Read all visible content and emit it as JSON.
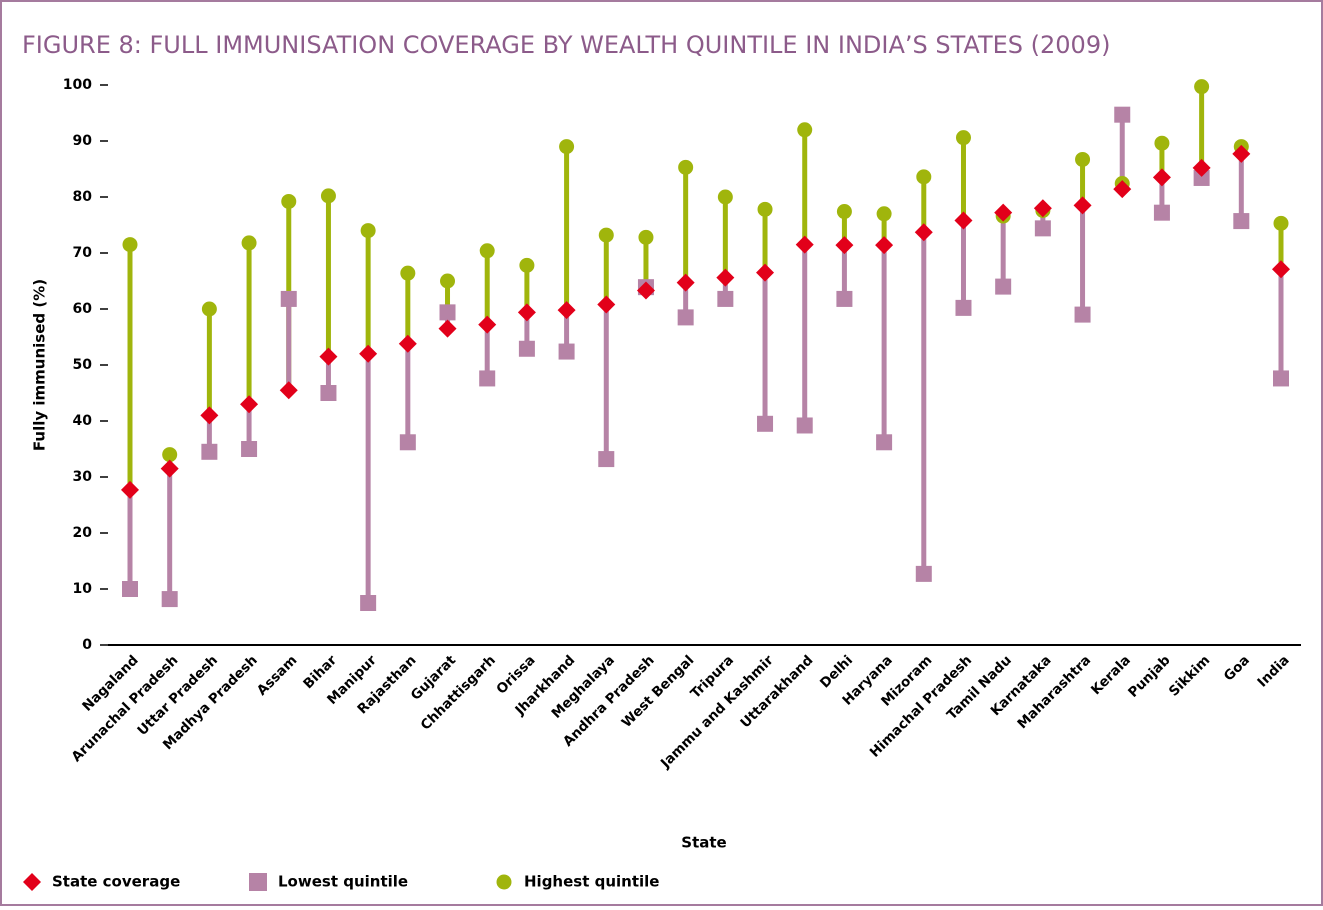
{
  "chart_data": {
    "type": "dot-range",
    "title": "FIGURE 8: FULL IMMUNISATION COVERAGE BY WEALTH QUINTILE IN INDIA’S STATES (2009)",
    "x_label": "State",
    "y_label": "Fully immunised (%)",
    "categories": [
      "Nagaland",
      "Arunachal Pradesh",
      "Uttar Pradesh",
      "Madhya Pradesh",
      "Assam",
      "Bihar",
      "Manipur",
      "Rajasthan",
      "Gujarat",
      "Chhattisgarh",
      "Orissa",
      "Jharkhand",
      "Meghalaya",
      "Andhra Pradesh",
      "West Bengal",
      "Tripura",
      "Jammu and Kashmir",
      "Uttarakhand",
      "Delhi",
      "Haryana",
      "Mizoram",
      "Himachal Pradesh",
      "Tamil Nadu",
      "Karnataka",
      "Maharashtra",
      "Kerala",
      "Punjab",
      "Sikkim",
      "Goa",
      "India"
    ],
    "series": [
      {
        "name": "State coverage",
        "color": "#e2001a",
        "marker": "diamond",
        "values": [
          27.7,
          31.5,
          41,
          43,
          45.5,
          51.5,
          52,
          53.8,
          56.5,
          57.2,
          59.4,
          59.8,
          60.8,
          63.3,
          64.7,
          65.6,
          66.5,
          71.5,
          71.4,
          71.4,
          73.7,
          75.8,
          77.2,
          78,
          78.5,
          81.4,
          83.5,
          85.2,
          87.7,
          67.1
        ]
      },
      {
        "name": "Lowest quintile",
        "color": "#b683a6",
        "marker": "square",
        "values": [
          10,
          8.2,
          34.5,
          35,
          61.8,
          45,
          7.5,
          36.2,
          59.4,
          47.6,
          52.9,
          52.4,
          33.2,
          63.9,
          58.5,
          61.8,
          39.5,
          39.2,
          61.8,
          36.2,
          12.7,
          60.2,
          64,
          74.4,
          59,
          94.7,
          77.2,
          83.4,
          75.7,
          47.6
        ]
      },
      {
        "name": "Highest quintile",
        "color": "#a0b50c",
        "marker": "circle",
        "values": [
          71.5,
          34,
          60,
          71.8,
          79.2,
          80.2,
          74,
          66.4,
          65,
          70.4,
          67.8,
          89,
          73.2,
          72.8,
          85.3,
          80,
          77.8,
          92,
          77.4,
          77,
          83.6,
          90.6,
          76.6,
          77.6,
          86.7,
          82.4,
          89.6,
          99.7,
          89,
          75.3
        ]
      }
    ],
    "ylim": [
      0,
      100
    ],
    "yticks": [
      0,
      10,
      20,
      30,
      40,
      50,
      60,
      70,
      80,
      90,
      100
    ]
  }
}
